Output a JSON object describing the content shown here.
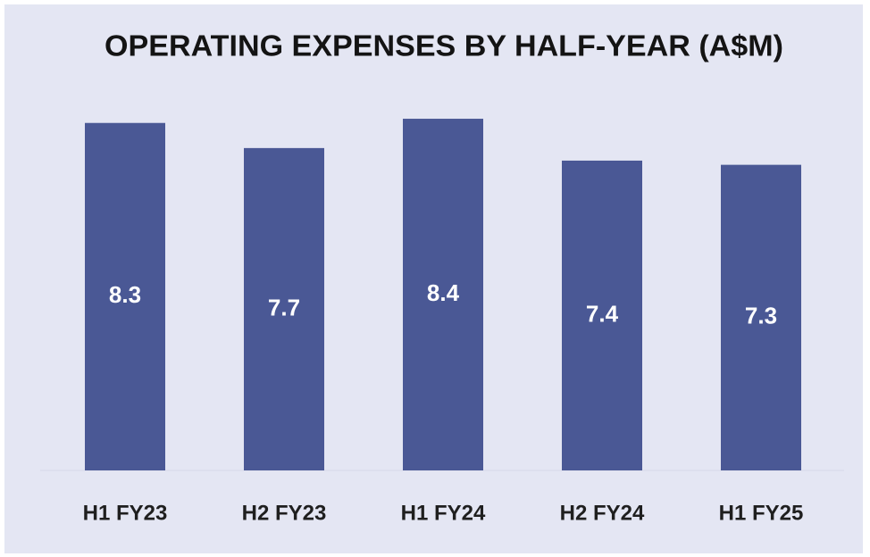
{
  "chart_data": {
    "type": "bar",
    "title": "OPERATING EXPENSES BY HALF-YEAR (A$M)",
    "categories": [
      "H1 FY23",
      "H2 FY23",
      "H1 FY24",
      "H2 FY24",
      "H1 FY25"
    ],
    "values": [
      8.3,
      7.7,
      8.4,
      7.4,
      7.3
    ],
    "color": "#4a5895"
  }
}
